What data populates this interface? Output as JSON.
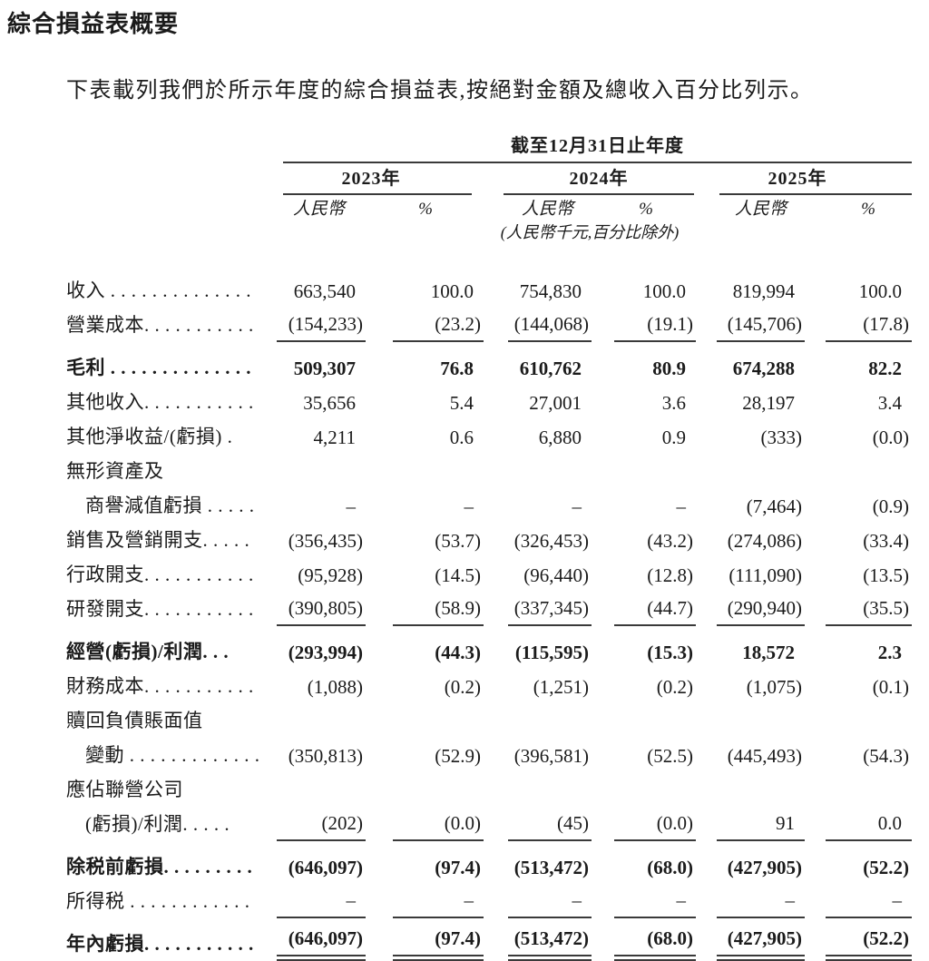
{
  "page": {
    "title": "綜合損益表概要",
    "intro": "下表載列我們於所示年度的綜合損益表,按絕對金額及總收入百分比列示。"
  },
  "table": {
    "period_header": "截至12月31日止年度",
    "years": [
      "2023年",
      "2024年",
      "2025年"
    ],
    "subheaders": {
      "rmb": "人民幣",
      "pct": "%"
    },
    "unit_note": "(人民幣千元,百分比除外)",
    "rows": [
      {
        "id": "revenue",
        "label": "收入 . . . . . . . . . . . . . .",
        "values": [
          "663,540",
          "100.0",
          "754,830",
          "100.0",
          "819,994",
          "100.0"
        ],
        "flags": []
      },
      {
        "id": "cost-of-sales",
        "label": "營業成本. . . . . . . . . . .",
        "values": [
          "(154,233)",
          "(23.2)",
          "(144,068)",
          "(19.1)",
          "(145,706)",
          "(17.8)"
        ],
        "flags": [
          "rule"
        ]
      },
      {
        "id": "gross-profit",
        "label": "毛利 . . . . . . . . . . . . . .",
        "values": [
          "509,307",
          "76.8",
          "610,762",
          "80.9",
          "674,288",
          "82.2"
        ],
        "flags": [
          "bold",
          "gap"
        ]
      },
      {
        "id": "other-income",
        "label": "其他收入. . . . . . . . . . .",
        "values": [
          "35,656",
          "5.4",
          "27,001",
          "3.6",
          "28,197",
          "3.4"
        ],
        "flags": []
      },
      {
        "id": "other-net-gains-losses",
        "label": "其他淨收益/(虧損) .",
        "values": [
          "4,211",
          "0.6",
          "6,880",
          "0.9",
          "(333)",
          "(0.0)"
        ],
        "flags": []
      },
      {
        "id": "intangible-assets-line",
        "label": "無形資產及",
        "values": [
          "",
          "",
          "",
          "",
          "",
          ""
        ],
        "flags": [
          "labelonly"
        ]
      },
      {
        "id": "goodwill-impairment",
        "label": "商譽減值虧損 . . . . .",
        "values": [
          "–",
          "–",
          "–",
          "–",
          "(7,464)",
          "(0.9)"
        ],
        "flags": [
          "indent"
        ]
      },
      {
        "id": "selling-marketing-expenses",
        "label": "銷售及營銷開支. . . . .",
        "values": [
          "(356,435)",
          "(53.7)",
          "(326,453)",
          "(43.2)",
          "(274,086)",
          "(33.4)"
        ],
        "flags": []
      },
      {
        "id": "administrative-expenses",
        "label": "行政開支. . . . . . . . . . .",
        "values": [
          "(95,928)",
          "(14.5)",
          "(96,440)",
          "(12.8)",
          "(111,090)",
          "(13.5)"
        ],
        "flags": []
      },
      {
        "id": "rd-expenses",
        "label": "研發開支. . . . . . . . . . .",
        "values": [
          "(390,805)",
          "(58.9)",
          "(337,345)",
          "(44.7)",
          "(290,940)",
          "(35.5)"
        ],
        "flags": [
          "rule"
        ]
      },
      {
        "id": "operating-loss-profit",
        "label": "經營(虧損)/利潤. . .",
        "values": [
          "(293,994)",
          "(44.3)",
          "(115,595)",
          "(15.3)",
          "18,572",
          "2.3"
        ],
        "flags": [
          "bold",
          "gap"
        ]
      },
      {
        "id": "finance-costs",
        "label": "財務成本. . . . . . . . . . .",
        "values": [
          "(1,088)",
          "(0.2)",
          "(1,251)",
          "(0.2)",
          "(1,075)",
          "(0.1)"
        ],
        "flags": []
      },
      {
        "id": "redemption-liabilities-line",
        "label": "贖回負債賬面值",
        "values": [
          "",
          "",
          "",
          "",
          "",
          ""
        ],
        "flags": [
          "labelonly"
        ]
      },
      {
        "id": "redemption-change",
        "label": "變動 . . . . . . . . . . . . .",
        "values": [
          "(350,813)",
          "(52.9)",
          "(396,581)",
          "(52.5)",
          "(445,493)",
          "(54.3)"
        ],
        "flags": [
          "indent"
        ]
      },
      {
        "id": "associates-line",
        "label": "應佔聯營公司",
        "values": [
          "",
          "",
          "",
          "",
          "",
          ""
        ],
        "flags": [
          "labelonly"
        ]
      },
      {
        "id": "associates-share",
        "label": "(虧損)/利潤. . . . .",
        "values": [
          "(202)",
          "(0.0)",
          "(45)",
          "(0.0)",
          "91",
          "0.0"
        ],
        "flags": [
          "indent",
          "rule"
        ]
      },
      {
        "id": "loss-before-tax",
        "label": "除税前虧損. . . . . . . . .",
        "values": [
          "(646,097)",
          "(97.4)",
          "(513,472)",
          "(68.0)",
          "(427,905)",
          "(52.2)"
        ],
        "flags": [
          "bold",
          "gap"
        ]
      },
      {
        "id": "income-tax",
        "label": "所得税 . . . . . . . . . . . .",
        "values": [
          "–",
          "–",
          "–",
          "–",
          "–",
          "–"
        ],
        "flags": [
          "rule"
        ]
      },
      {
        "id": "loss-for-year",
        "label": "年內虧損. . . . . . . . . . .",
        "values": [
          "(646,097)",
          "(97.4)",
          "(513,472)",
          "(68.0)",
          "(427,905)",
          "(52.2)"
        ],
        "flags": [
          "bold",
          "dbl",
          "gap"
        ]
      }
    ]
  },
  "colors": {
    "text": "#1b1b1b",
    "rule": "#3a3a3a",
    "background": "#ffffff"
  }
}
